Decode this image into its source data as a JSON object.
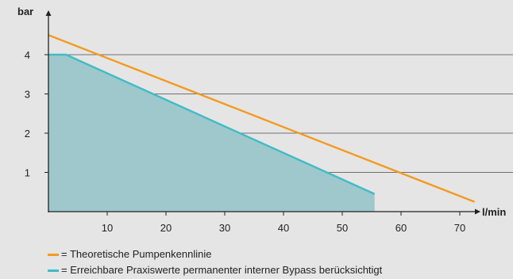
{
  "chart_data": {
    "type": "line",
    "xlabel": "l/min",
    "ylabel": "bar",
    "xlim": [
      0,
      73
    ],
    "ylim": [
      0,
      5
    ],
    "xticks": [
      10,
      20,
      30,
      40,
      50,
      60,
      70
    ],
    "yticks": [
      1,
      2,
      3,
      4
    ],
    "grid": "horizontal",
    "legend_position": "bottom-left",
    "series": [
      {
        "name": "Theoretische Pumpenkennlinie",
        "style": "line",
        "color": "#f39a1f",
        "points": [
          [
            0,
            4.5
          ],
          [
            72.5,
            0.25
          ]
        ]
      },
      {
        "name": "Erreichbare Praxiswerte permanenter interner Bypass berücksichtigt",
        "style": "area",
        "color": "#3fbcc5",
        "fill": "#9fc8cc",
        "points": [
          [
            0,
            4.0
          ],
          [
            3,
            4.0
          ],
          [
            55.5,
            0.45
          ]
        ]
      }
    ],
    "legend": [
      {
        "text": "= Theoretische Pumpenkennlinie",
        "color": "#f39a1f"
      },
      {
        "text": "= Erreichbare Praxiswerte permanenter interner Bypass berücksichtigt",
        "color": "#3fbcc5"
      }
    ]
  }
}
